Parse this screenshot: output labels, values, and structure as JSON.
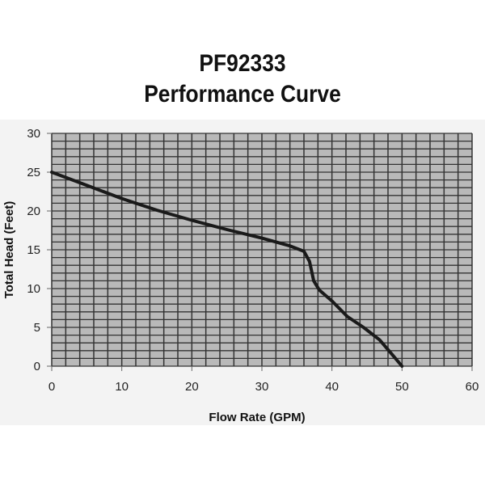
{
  "chart_data": {
    "type": "line",
    "title": "PF92333",
    "subtitle": "Performance Curve",
    "xlabel": "Flow Rate (GPM)",
    "ylabel": "Total Head (Feet)",
    "xlim": [
      0,
      60
    ],
    "ylim": [
      0,
      30
    ],
    "xticks": [
      0,
      10,
      20,
      30,
      40,
      50,
      60
    ],
    "yticks": [
      0,
      5,
      10,
      15,
      20,
      25,
      30
    ],
    "grid": true,
    "grid_minor_x": 2,
    "grid_minor_y": 1,
    "series": [
      {
        "name": "Performance Curve",
        "x": [
          0,
          5,
          10,
          15,
          20,
          25,
          30,
          34,
          36,
          36.8,
          37.4,
          38.2,
          40,
          42.2,
          44.5,
          46.8,
          48.5,
          50
        ],
        "y": [
          25,
          23.3,
          21.6,
          20.1,
          18.8,
          17.6,
          16.5,
          15.5,
          14.8,
          13.5,
          11,
          9.8,
          8.4,
          6.4,
          5,
          3.4,
          1.6,
          0
        ]
      }
    ],
    "colors": {
      "line": "#1a1a1a",
      "grid": "#333333",
      "plot_bg": "#b9b9b9"
    }
  }
}
